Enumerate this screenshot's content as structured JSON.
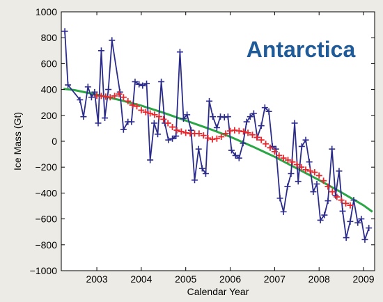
{
  "chart_data": {
    "type": "line",
    "title": "Antarctica",
    "xlabel": "Calendar Year",
    "ylabel": "Ice Mass (Gt)",
    "xlim": [
      2002.2,
      2009.25
    ],
    "ylim": [
      -1000,
      1000
    ],
    "x_ticks": [
      2003,
      2004,
      2005,
      2006,
      2007,
      2008,
      2009
    ],
    "y_ticks": [
      -1000,
      -800,
      -600,
      -400,
      -200,
      0,
      200,
      400,
      600,
      800,
      1000
    ],
    "grid": false,
    "legend": "none",
    "series": [
      {
        "style": "line+plus-markers",
        "color": "#2b2b8c",
        "x": [
          2002.28,
          2002.35,
          2002.62,
          2002.7,
          2002.8,
          2002.88,
          2002.95,
          2003.03,
          2003.1,
          2003.18,
          2003.26,
          2003.34,
          2003.52,
          2003.6,
          2003.7,
          2003.78,
          2003.86,
          2003.95,
          2004.03,
          2004.12,
          2004.2,
          2004.29,
          2004.37,
          2004.45,
          2004.53,
          2004.61,
          2004.7,
          2004.78,
          2004.87,
          2004.95,
          2005.03,
          2005.12,
          2005.2,
          2005.29,
          2005.37,
          2005.45,
          2005.53,
          2005.61,
          2005.7,
          2005.78,
          2005.87,
          2005.95,
          2006.03,
          2006.12,
          2006.2,
          2006.29,
          2006.37,
          2006.45,
          2006.53,
          2006.61,
          2006.7,
          2006.78,
          2006.87,
          2006.95,
          2007.03,
          2007.12,
          2007.2,
          2007.29,
          2007.37,
          2007.45,
          2007.53,
          2007.61,
          2007.7,
          2007.78,
          2007.87,
          2007.95,
          2008.03,
          2008.12,
          2008.2,
          2008.29,
          2008.37,
          2008.45,
          2008.53,
          2008.61,
          2008.7,
          2008.78,
          2008.87,
          2008.95,
          2009.03,
          2009.12
        ],
        "y": [
          850,
          435,
          320,
          190,
          420,
          340,
          380,
          140,
          700,
          180,
          400,
          780,
          380,
          90,
          150,
          150,
          460,
          440,
          430,
          445,
          -145,
          140,
          55,
          460,
          140,
          10,
          20,
          40,
          690,
          175,
          205,
          85,
          -300,
          -60,
          -210,
          -250,
          310,
          190,
          105,
          190,
          185,
          190,
          -70,
          -110,
          -130,
          -15,
          150,
          190,
          215,
          30,
          120,
          260,
          230,
          -40,
          -60,
          -440,
          -545,
          -350,
          -250,
          140,
          -310,
          -40,
          10,
          -160,
          -390,
          -330,
          -610,
          -570,
          -460,
          -60,
          -420,
          -230,
          -540,
          -745,
          -620,
          -455,
          -630,
          -600,
          -760,
          -670
        ]
      },
      {
        "style": "plus-markers",
        "color": "#e8262c",
        "x": [
          2003.0,
          2003.1,
          2003.2,
          2003.3,
          2003.4,
          2003.5,
          2003.6,
          2003.7,
          2003.8,
          2003.9,
          2004.0,
          2004.1,
          2004.2,
          2004.3,
          2004.4,
          2004.5,
          2004.6,
          2004.7,
          2004.8,
          2004.9,
          2005.0,
          2005.1,
          2005.2,
          2005.3,
          2005.4,
          2005.5,
          2005.6,
          2005.7,
          2005.8,
          2005.9,
          2006.0,
          2006.1,
          2006.2,
          2006.3,
          2006.4,
          2006.5,
          2006.6,
          2006.7,
          2006.8,
          2006.9,
          2007.0,
          2007.1,
          2007.2,
          2007.3,
          2007.4,
          2007.5,
          2007.6,
          2007.7,
          2007.8,
          2007.9,
          2008.0,
          2008.1,
          2008.2,
          2008.3,
          2008.4,
          2008.5,
          2008.6,
          2008.7
        ],
        "y": [
          350,
          350,
          345,
          340,
          350,
          365,
          340,
          310,
          280,
          270,
          240,
          225,
          215,
          205,
          190,
          170,
          140,
          110,
          85,
          75,
          65,
          60,
          60,
          60,
          45,
          25,
          15,
          20,
          35,
          60,
          80,
          85,
          80,
          75,
          65,
          50,
          30,
          10,
          -20,
          -50,
          -80,
          -110,
          -130,
          -145,
          -160,
          -180,
          -200,
          -220,
          -230,
          -240,
          -265,
          -305,
          -350,
          -390,
          -430,
          -455,
          -480,
          -495
        ]
      },
      {
        "style": "line",
        "color": "#2aa646",
        "x": [
          2002.25,
          2002.5,
          2003.0,
          2003.5,
          2004.0,
          2004.5,
          2005.0,
          2005.5,
          2006.0,
          2006.5,
          2007.0,
          2007.5,
          2008.0,
          2008.5,
          2009.0,
          2009.2
        ],
        "y": [
          405,
          395,
          360,
          320,
          275,
          220,
          160,
          100,
          35,
          -40,
          -120,
          -210,
          -300,
          -395,
          -495,
          -545
        ]
      }
    ]
  }
}
